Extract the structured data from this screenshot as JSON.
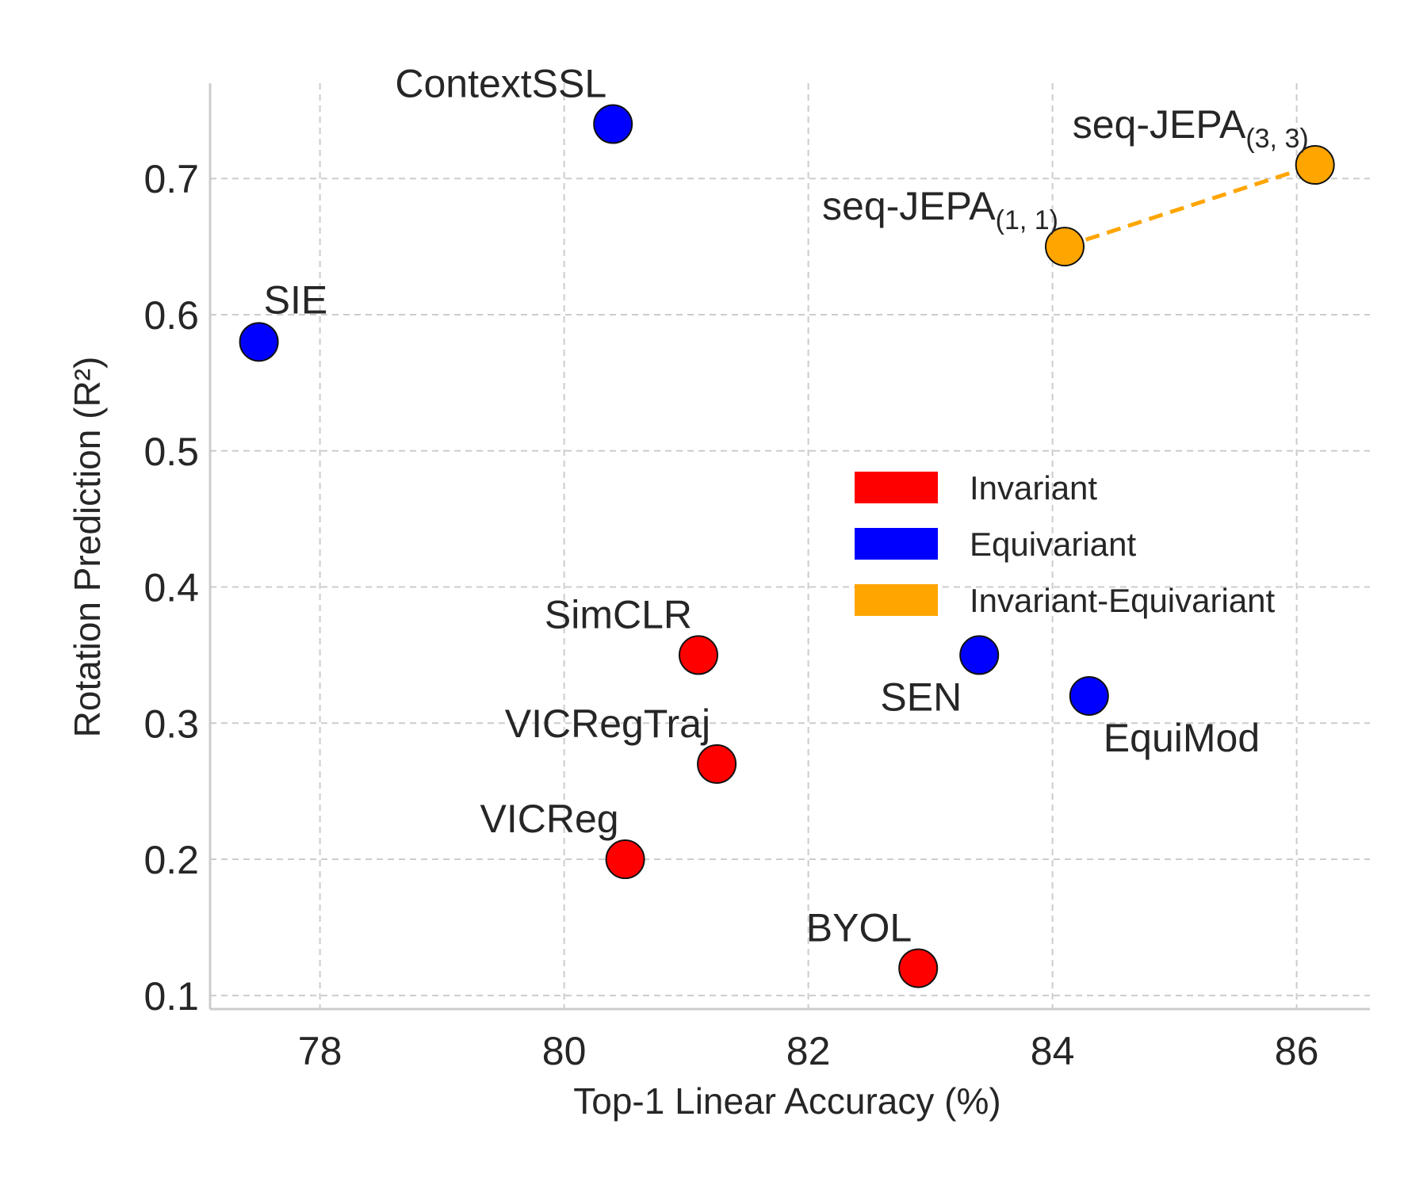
{
  "chart_data": {
    "type": "scatter",
    "xlabel": "Top-1 Linear Accuracy (%)",
    "ylabel": "Rotation Prediction (R²)",
    "xlim": [
      77.1,
      86.6
    ],
    "ylim": [
      0.09,
      0.77
    ],
    "xticks": [
      78,
      80,
      82,
      84,
      86
    ],
    "yticks": [
      0.1,
      0.2,
      0.3,
      0.4,
      0.5,
      0.6,
      0.7
    ],
    "grid": true,
    "legend_position": "center-right",
    "categories": [
      {
        "key": "invariant",
        "name": "Invariant",
        "color": "#ff0000"
      },
      {
        "key": "equivariant",
        "name": "Equivariant",
        "color": "#0000ff"
      },
      {
        "key": "inv_eq",
        "name": "Invariant-Equivariant",
        "color": "#ffa500"
      }
    ],
    "points": [
      {
        "label": "ContextSSL",
        "x": 80.4,
        "y": 0.74,
        "category": "equivariant",
        "label_anchor": "end",
        "label_pos": "above-left"
      },
      {
        "label": "SIE",
        "x": 77.5,
        "y": 0.58,
        "category": "equivariant",
        "label_anchor": "start",
        "label_pos": "above-right"
      },
      {
        "label": "SimCLR",
        "x": 81.1,
        "y": 0.35,
        "category": "invariant",
        "label_anchor": "end",
        "label_pos": "above-left"
      },
      {
        "label": "VICRegTraj",
        "x": 81.25,
        "y": 0.27,
        "category": "invariant",
        "label_anchor": "end",
        "label_pos": "above-left"
      },
      {
        "label": "VICReg",
        "x": 80.5,
        "y": 0.2,
        "category": "invariant",
        "label_anchor": "end",
        "label_pos": "above-left"
      },
      {
        "label": "BYOL",
        "x": 82.9,
        "y": 0.12,
        "category": "invariant",
        "label_anchor": "end",
        "label_pos": "above-left"
      },
      {
        "label": "SEN",
        "x": 83.4,
        "y": 0.35,
        "category": "equivariant",
        "label_anchor": "end",
        "label_pos": "below-left"
      },
      {
        "label": "EquiMod",
        "x": 84.3,
        "y": 0.32,
        "category": "equivariant",
        "label_anchor": "start",
        "label_pos": "below-right"
      },
      {
        "label": "seq-JEPA",
        "sub": "(1, 1)",
        "x": 84.1,
        "y": 0.65,
        "category": "inv_eq",
        "label_anchor": "end",
        "label_pos": "above-left"
      },
      {
        "label": "seq-JEPA",
        "sub": "(3, 3)",
        "x": 86.15,
        "y": 0.71,
        "category": "inv_eq",
        "label_anchor": "end",
        "label_pos": "above-left"
      }
    ],
    "connections": [
      {
        "from": 8,
        "to": 9,
        "color": "#ffa500",
        "style": "dashed"
      }
    ]
  }
}
